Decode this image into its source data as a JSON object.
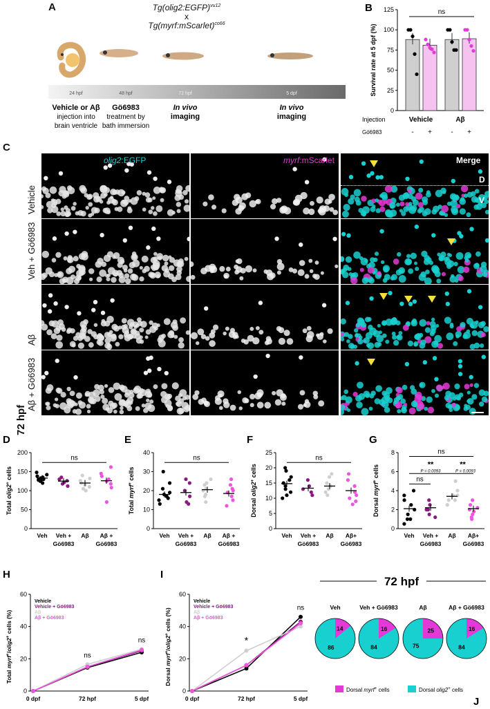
{
  "panelA": {
    "label": "A",
    "cross_line1": "Tg(olig2:EGFP)",
    "cross_line1_sup": "vu12",
    "cross_x": "x",
    "cross_line2": "Tg(myrf:mScarlet)",
    "cross_line2_sup": "co66",
    "timepoints": [
      "24 hpf",
      "48 hpf",
      "72 hpf",
      "5 dpf"
    ],
    "step1": [
      "Vehicle or Aβ",
      "injection into",
      "brain ventricle"
    ],
    "step2": [
      "Gö6983",
      "treatment by",
      "bath immersion"
    ],
    "step3": [
      "In vivo",
      "imaging"
    ],
    "step4": [
      "In vivo",
      "imaging"
    ]
  },
  "panelC": {
    "label": "C",
    "time_label": "72 hpf",
    "col_labels": {
      "c1_a": "olig2",
      "c1_b": ":EGFP",
      "c2_a": "myrf",
      "c2_b": ":mScarlet",
      "c3": "Merge"
    },
    "rows": [
      "Vehicle",
      "Veh + Gö6983",
      "Aβ",
      "Aβ + Gö6983"
    ],
    "region_d": "D",
    "region_v": "V"
  },
  "colors": {
    "cyan": "#19d0d0",
    "magenta": "#e23ad6",
    "pink": "#ee55dd",
    "grey": "#cfcfcf",
    "purple": "#8a1a7e",
    "black": "#111111",
    "yellow": "#f3e03a"
  },
  "chart_data": [
    {
      "id": "B",
      "label": "B",
      "type": "bar",
      "ylabel": "Survival rate at 5 dpf (%)",
      "ylim": [
        0,
        125
      ],
      "yticks": [
        0,
        25,
        50,
        75,
        100,
        125
      ],
      "row1_label": "Injection",
      "row2_label": "Gö6983",
      "groups": [
        "Vehicle",
        "Aβ"
      ],
      "treat": [
        "-",
        "+",
        "-",
        "+"
      ],
      "values": [
        88,
        81,
        88,
        89
      ],
      "sig": "ns"
    },
    {
      "id": "D",
      "label": "D",
      "type": "scatter",
      "ylabel_pre": "Total ",
      "ylabel_it": "olig2",
      "ylabel_sup": "+",
      "ylabel_post": " cells",
      "ylim": [
        0,
        200
      ],
      "yticks": [
        0,
        50,
        100,
        150,
        200
      ],
      "categories": [
        "Veh",
        "Veh +\nGö6983",
        "Aβ",
        "Aβ +\nGö6983"
      ],
      "means": [
        133,
        125,
        120,
        126
      ],
      "points": [
        [
          148,
          142,
          138,
          135,
          133,
          132,
          130,
          128,
          125,
          120
        ],
        [
          135,
          130,
          126,
          122,
          118,
          112
        ],
        [
          140,
          132,
          126,
          120,
          115,
          110,
          105,
          100
        ],
        [
          162,
          145,
          138,
          130,
          125,
          118,
          108,
          70
        ]
      ],
      "sig": "ns"
    },
    {
      "id": "E",
      "label": "E",
      "type": "scatter",
      "ylabel_pre": "Total ",
      "ylabel_it": "myrf",
      "ylabel_sup": "+",
      "ylabel_post": " cells",
      "ylim": [
        0,
        40
      ],
      "yticks": [
        0,
        10,
        20,
        30,
        40
      ],
      "categories": [
        "Veh",
        "Veh +\nGö6983",
        "Aβ",
        "Aβ +\nGö6983"
      ],
      "means": [
        18,
        19,
        20.5,
        18.5
      ],
      "points": [
        [
          30,
          24,
          21,
          19,
          18,
          17,
          16,
          15,
          13
        ],
        [
          26,
          24,
          20,
          17,
          14,
          13
        ],
        [
          26,
          24,
          23,
          21,
          20,
          18,
          17,
          14
        ],
        [
          26,
          23,
          21,
          20,
          19,
          17,
          15,
          12
        ]
      ],
      "sig": "ns"
    },
    {
      "id": "F",
      "label": "F",
      "type": "scatter",
      "ylabel_pre": "Dorsal ",
      "ylabel_it": "olig2",
      "ylabel_sup": "+",
      "ylabel_post": " cells",
      "ylim": [
        0,
        25
      ],
      "yticks": [
        0,
        5,
        10,
        15,
        20,
        25
      ],
      "categories": [
        "Veh",
        "Veh +\nGö6983",
        "Aβ",
        "Aβ+\nGö6983"
      ],
      "means": [
        14.8,
        13.3,
        14,
        12.5
      ],
      "points": [
        [
          20,
          19,
          17,
          16,
          15,
          14,
          13,
          12,
          11,
          10
        ],
        [
          16,
          14,
          13,
          12,
          11
        ],
        [
          18,
          17,
          15,
          14,
          13,
          12,
          11
        ],
        [
          18,
          16,
          14,
          12,
          11,
          10,
          9,
          8
        ]
      ],
      "sig": "ns"
    },
    {
      "id": "G",
      "label": "G",
      "type": "scatter",
      "ylabel_pre": "Dorsal ",
      "ylabel_it": "myrf",
      "ylabel_sup": "+",
      "ylabel_post": " cells",
      "ylim": [
        0,
        8
      ],
      "yticks": [
        0,
        2,
        4,
        6,
        8
      ],
      "categories": [
        "Veh",
        "Veh +\nGö6983",
        "Aβ",
        "Aβ+\nGö6983"
      ],
      "means": [
        2.1,
        2.2,
        3.4,
        2.1
      ],
      "points": [
        [
          4,
          3.5,
          3,
          2.5,
          2,
          1.5,
          1,
          1,
          0.5
        ],
        [
          3,
          2.5,
          2,
          2,
          1.5,
          1.2
        ],
        [
          5,
          4,
          3.5,
          3.5,
          3,
          3,
          2.5
        ],
        [
          3,
          2.5,
          2.2,
          2,
          1.8,
          1.5,
          1.2,
          1
        ]
      ],
      "sig_top": "ns",
      "sig_left": "ns",
      "sig_mid_stars": "**",
      "sig_mid_p": "P = 0.0093",
      "sig_right_stars": "**",
      "sig_right_p": "P = 0.0093"
    },
    {
      "id": "H",
      "label": "H",
      "type": "line",
      "ylabel_pre": "Total ",
      "ylabel_it1": "myrf",
      "ylabel_sup1": "+",
      "ylabel_mid": "/",
      "ylabel_it2": "olig2",
      "ylabel_sup2": "+",
      "ylabel_post": " cells (%)",
      "ylim": [
        0,
        60
      ],
      "yticks": [
        0,
        20,
        40,
        60
      ],
      "x": [
        "0 dpf",
        "72 hpf",
        "5 dpf"
      ],
      "series": [
        {
          "name": "Vehicle",
          "values": [
            0,
            14.5,
            24
          ]
        },
        {
          "name": "Vehicle + Gö6983",
          "values": [
            0,
            15,
            25
          ]
        },
        {
          "name": "Aβ",
          "values": [
            0,
            16.5,
            26
          ]
        },
        {
          "name": "Aβ + Gö6983",
          "values": [
            0,
            15,
            25.5
          ]
        }
      ],
      "sig_labels": [
        "ns",
        "ns"
      ]
    },
    {
      "id": "I",
      "label": "I",
      "type": "line",
      "ylabel_pre": "Dorsal ",
      "ylabel_it1": "myrf",
      "ylabel_sup1": "+",
      "ylabel_mid": "/",
      "ylabel_it2": "olig2",
      "ylabel_sup2": "+",
      "ylabel_post": " cells (%)",
      "ylim": [
        0,
        60
      ],
      "yticks": [
        0,
        20,
        40,
        60
      ],
      "x": [
        "0 dpf",
        "72 hpf",
        "5 dpf"
      ],
      "series": [
        {
          "name": "Vehicle",
          "values": [
            0,
            14,
            46
          ]
        },
        {
          "name": "Vehicle + Gö6983",
          "values": [
            0,
            16,
            43
          ]
        },
        {
          "name": "Aβ",
          "values": [
            0,
            25,
            40
          ]
        },
        {
          "name": "Aβ + Gö6983",
          "values": [
            0,
            16,
            42
          ]
        }
      ],
      "sig_labels": [
        "*",
        "ns"
      ]
    },
    {
      "id": "J",
      "label": "J",
      "type": "pie",
      "title": "72 hpf",
      "pies": [
        {
          "name": "Veh",
          "values": [
            14,
            86
          ]
        },
        {
          "name": "Veh + Gö6983",
          "values": [
            16,
            84
          ]
        },
        {
          "name": "Aβ",
          "values": [
            25,
            75
          ]
        },
        {
          "name": "Aβ + Gö6983",
          "values": [
            16,
            84
          ]
        }
      ],
      "legend": [
        {
          "pre": "Dorsal ",
          "it": "myrf",
          "sup": "+",
          "post": " cells"
        },
        {
          "pre": "Dorsal ",
          "it": "olig2",
          "sup": "+",
          "post": " cells"
        }
      ]
    }
  ]
}
